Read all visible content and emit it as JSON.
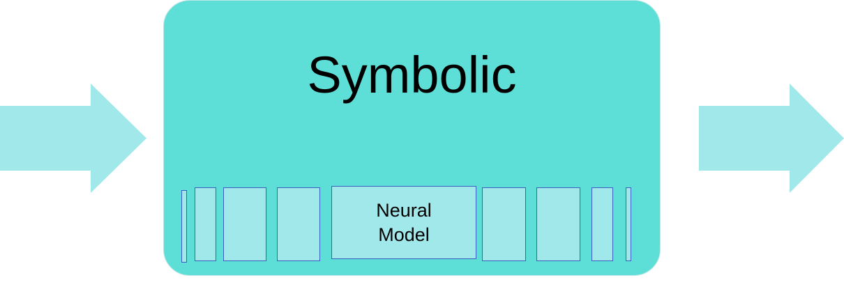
{
  "colors": {
    "box_fill": "#5ddfd8",
    "arrow_fill": "#a1e8ea",
    "slot_fill": "#a1e8ea",
    "slot_border": "#3b5fc0"
  },
  "symbolic": {
    "title": "Symbolic"
  },
  "neural": {
    "line1": "Neural",
    "line2": "Model"
  }
}
